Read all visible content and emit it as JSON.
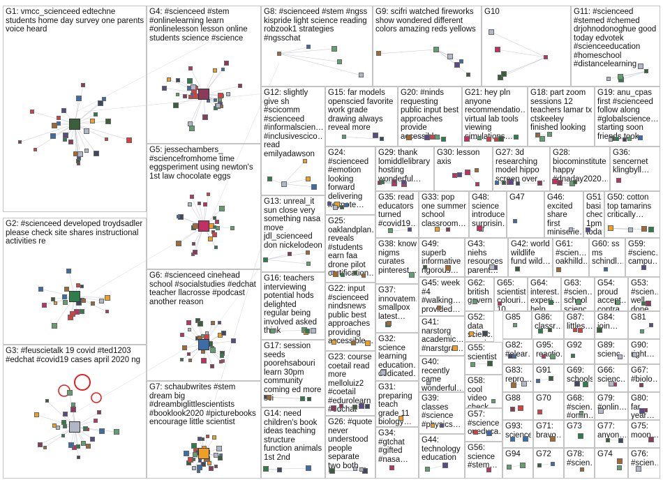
{
  "colors": {
    "border": "#c4c4c4",
    "text": "#111111",
    "edge": "#b8bcc4",
    "self_loop": "#e02020",
    "node_palette": [
      "#3a5f3a",
      "#2f7d4a",
      "#b0b8c8",
      "#8a3a5a",
      "#c03060",
      "#3b6ea8",
      "#f0a020",
      "#5a4a8a",
      "#d84040",
      "#60a070",
      "#404860",
      "#a06a30"
    ]
  },
  "groups": [
    {
      "id": "G1",
      "label": "G1: vmcc_scienceed edtechne students home day survey one parents voice heard"
    },
    {
      "id": "G2",
      "label": "G2: #scienceed developed troydsadler please check site shares instructional activities re"
    },
    {
      "id": "G3",
      "label": "G3: #feuscietalk 19 covid #ted1203 #edchat #covid19 cases april 2020 ng"
    },
    {
      "id": "G4",
      "label": "G4: #scienceed #stem #onlinelearning learn #onlinelesson lesson online students science #science"
    },
    {
      "id": "G5",
      "label": "G5: jessechambers_ #sciencefromhome time eggsperiment using newton's 1st law chocolate eggs"
    },
    {
      "id": "G6",
      "label": "G6: #scienceed cinehead school #socialstudies #edchat teacher llacrosse #podcast another reason"
    },
    {
      "id": "G7",
      "label": "G7: schaubwrites #stem dream big #dreambiglittlescientists #booklook2020 #picturebooks encourage little scientist"
    },
    {
      "id": "G8",
      "label": "G8: #scienceed #stem #ngss kispride light science reading robzook1 strategies #ngsschat"
    },
    {
      "id": "G9",
      "label": "G9: scifri watched fireworks show wondered different colors amazing reds yellows"
    },
    {
      "id": "G10",
      "label": "G10"
    },
    {
      "id": "G11",
      "label": "G11: #scienceed #stemed #chemed drjohnodonoghue good today edvotek #scienceeducation #homeschool #distancelearning"
    },
    {
      "id": "G12",
      "label": "G12: slightly give sh #scicomm #scienceed #informalscien… #inclusivescico… read emilyadawson"
    },
    {
      "id": "G13",
      "label": "G13: unreal_it sun close very something nasa move jdl_scienceed don nickelodeon"
    },
    {
      "id": "G14",
      "label": "G14: need children's book ideas teaching structure function animals 1st 2nd"
    },
    {
      "id": "G15",
      "label": "G15: far models openscied favorite work grade drawing always reveal more"
    },
    {
      "id": "G16",
      "label": "G16: teachers interviewing potential hods delighted regular being involved asked think"
    },
    {
      "id": "G17",
      "label": "G17: session seeds poorehsabouri learn 30pm community coming ed more sci"
    },
    {
      "id": "G18",
      "label": "G18: part zoom sessions 12 teachers lamar tx ctskeeley finished looking"
    },
    {
      "id": "G19",
      "label": "G19: anu_cpas first #scienceed follow along #globalscience… starting soon friends took"
    },
    {
      "id": "G20",
      "label": "G20: #ninds requesting public input best approaches provide accessible…"
    },
    {
      "id": "G21",
      "label": "G21: hey pln anyone recommendatio… virtual lab tools viewing simulations…"
    },
    {
      "id": "G22",
      "label": "G22: input #scienceed nindsnews public best approaches providing accessible…"
    },
    {
      "id": "G23",
      "label": "G23: course coetail read more melloluiz2 #coetail #edurolearn #edchat"
    },
    {
      "id": "G24",
      "label": "G24: #scienceed #emotion looking forward delivering keynote…"
    },
    {
      "id": "G25",
      "label": "G25: oaklandplan… reveals #students earn faa drone pilot certification…"
    },
    {
      "id": "G26",
      "label": "G26: #quote never understood people separate two both…"
    },
    {
      "id": "G27",
      "label": "G27: 3d researching model hippo screen over…"
    },
    {
      "id": "G28",
      "label": "G28: biocominstitute happy #dnaday2020…"
    },
    {
      "id": "G29",
      "label": "G29: thank lomiddlelibrary hosting wonderful…"
    },
    {
      "id": "G30",
      "label": "G30: lesson axis"
    },
    {
      "id": "G31",
      "label": "G31: preparing teach grade 11 biology…"
    },
    {
      "id": "G32",
      "label": "G32: science learning education… dedicated…"
    },
    {
      "id": "G33",
      "label": "G33: pop one summer school classroom…"
    },
    {
      "id": "G34",
      "label": "G34: #gtchat #gifted #nasa…"
    },
    {
      "id": "G35",
      "label": "G35: read educators turned #covid19…"
    },
    {
      "id": "G36",
      "label": "G36: sencernet klingbyll…"
    },
    {
      "id": "G37",
      "label": "G37: innovatem… smallpox latest…"
    },
    {
      "id": "G38",
      "label": "G38: know nigms curates pinterest…"
    },
    {
      "id": "G39",
      "label": "G39: classes #science #physics…"
    },
    {
      "id": "G40",
      "label": "G40: recently came wonderful…"
    },
    {
      "id": "G41",
      "label": "G41: narstorg academic… #narstgra…"
    },
    {
      "id": "G42",
      "label": "G42: world wildlife fund wild…"
    },
    {
      "id": "G43",
      "label": "G43: niehs resources parent…"
    },
    {
      "id": "G44",
      "label": "G44: technology education"
    },
    {
      "id": "G45",
      "label": "G45: week #4 #walking… provided…"
    },
    {
      "id": "G46",
      "label": "G46: excited share first miniserie…"
    },
    {
      "id": "G47",
      "label": "G47"
    },
    {
      "id": "G48",
      "label": "G48: science introduce surprisin…"
    },
    {
      "id": "G49",
      "label": "G49: superb informative rigorous…"
    },
    {
      "id": "G50",
      "label": "G50: cotton top tamarins critically…"
    },
    {
      "id": "G51",
      "label": "G51: basi… check 1pm today"
    },
    {
      "id": "G52",
      "label": "G52: data scienc… passin…"
    },
    {
      "id": "G53",
      "label": "G53: #scien… well done…"
    },
    {
      "id": "G54",
      "label": "G54: proud accept… contra…"
    },
    {
      "id": "G55",
      "label": "G55: scientist"
    },
    {
      "id": "G56",
      "label": "G56: science #stem…"
    },
    {
      "id": "G57",
      "label": "G57: #science… oueduca…"
    },
    {
      "id": "G58",
      "label": "G58: cool video check…"
    },
    {
      "id": "G59",
      "label": "G59: #scienc… campu…"
    },
    {
      "id": "G60",
      "label": "G60: ss ms schindl…"
    },
    {
      "id": "G61",
      "label": "G61: #scien… oakhilld…"
    },
    {
      "id": "G62",
      "label": "G62: british governm…"
    },
    {
      "id": "G63",
      "label": "G63: #scien… school scienc…"
    },
    {
      "id": "G64",
      "label": "G64: interest… experi… help…"
    },
    {
      "id": "G65",
      "label": "G65: scientist colouri… 10 one…"
    },
    {
      "id": "G66",
      "label": "G66: scienc…"
    },
    {
      "id": "G67",
      "label": "G67: #biolo…"
    },
    {
      "id": "G68",
      "label": "G68: #scien… #onlin…"
    },
    {
      "id": "G69",
      "label": "G69: schools"
    },
    {
      "id": "G70",
      "label": "G70"
    },
    {
      "id": "G71",
      "label": "G71: bravo…"
    },
    {
      "id": "G72",
      "label": "G72"
    },
    {
      "id": "G73",
      "label": "G73"
    },
    {
      "id": "G74",
      "label": "G74"
    },
    {
      "id": "G75",
      "label": "G75: moon…"
    },
    {
      "id": "G76",
      "label": "G76: #scien…"
    },
    {
      "id": "G77",
      "label": "G77: anyon…"
    },
    {
      "id": "G78",
      "label": "G78: #scien…"
    },
    {
      "id": "G79",
      "label": "G79: #onlin…"
    },
    {
      "id": "G80",
      "label": "G80: far year…"
    },
    {
      "id": "G81",
      "label": "G81"
    },
    {
      "id": "G82",
      "label": "G82: #elear…"
    },
    {
      "id": "G83",
      "label": "G83: repro…"
    },
    {
      "id": "G84",
      "label": "G84: join…"
    },
    {
      "id": "G85",
      "label": "G85"
    },
    {
      "id": "G86",
      "label": "G86: classr…"
    },
    {
      "id": "G87",
      "label": "G87: littles…"
    },
    {
      "id": "G88",
      "label": "G88"
    },
    {
      "id": "G89",
      "label": "G89: scienc…"
    },
    {
      "id": "G90",
      "label": "G90: right…"
    },
    {
      "id": "G91",
      "label": "G91"
    },
    {
      "id": "G92",
      "label": "G92"
    },
    {
      "id": "G93",
      "label": "G93: science"
    },
    {
      "id": "G94",
      "label": "G94"
    },
    {
      "id": "G95",
      "label": "G95: reactio…"
    }
  ]
}
